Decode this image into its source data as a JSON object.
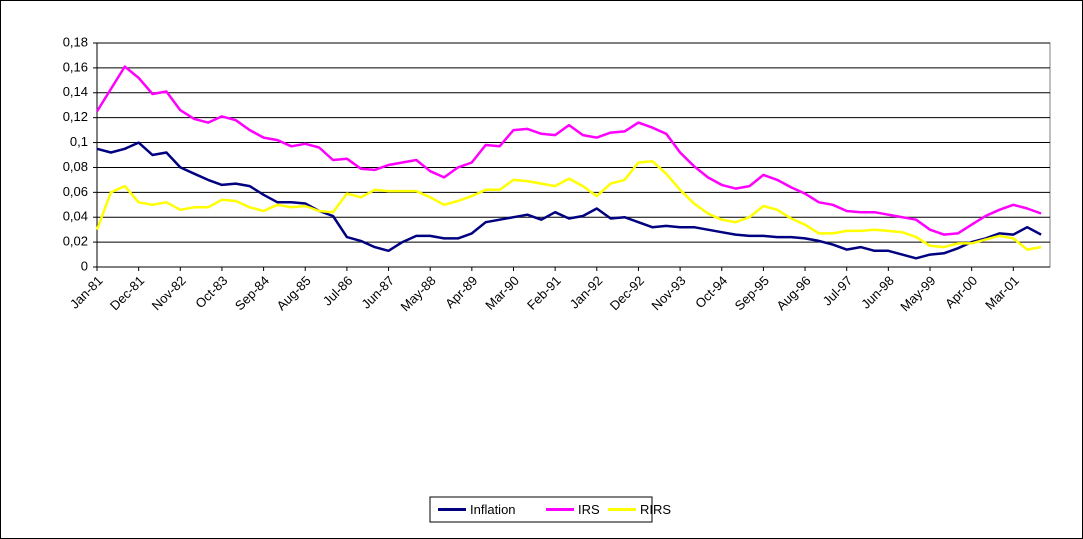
{
  "chart_data": {
    "type": "line",
    "categories": [
      "Jan-81",
      null,
      null,
      "Dec-81",
      null,
      null,
      "Nov-82",
      null,
      null,
      "Oct-83",
      null,
      null,
      "Sep-84",
      null,
      null,
      "Aug-85",
      null,
      null,
      "Jul-86",
      null,
      null,
      "Jun-87",
      null,
      null,
      "May-88",
      null,
      null,
      "Apr-89",
      null,
      null,
      "Mar-90",
      null,
      null,
      "Feb-91",
      null,
      null,
      "Jan-92",
      null,
      null,
      "Dec-92",
      null,
      null,
      "Nov-93",
      null,
      null,
      "Oct-94",
      null,
      null,
      "Sep-95",
      null,
      null,
      "Aug-96",
      null,
      null,
      "Jul-97",
      null,
      null,
      "Jun-98",
      null,
      null,
      "May-99",
      null,
      null,
      "Apr-00",
      null,
      null,
      "Mar-01",
      null,
      null
    ],
    "series": [
      {
        "name": "Inflation",
        "color": "#000080",
        "values": [
          0.095,
          0.092,
          0.095,
          0.1,
          0.09,
          0.092,
          0.08,
          0.075,
          0.07,
          0.066,
          0.067,
          0.065,
          0.058,
          0.052,
          0.052,
          0.051,
          0.045,
          0.041,
          0.024,
          0.021,
          0.016,
          0.013,
          0.02,
          0.025,
          0.025,
          0.023,
          0.023,
          0.027,
          0.036,
          0.038,
          0.04,
          0.042,
          0.038,
          0.044,
          0.039,
          0.041,
          0.047,
          0.039,
          0.04,
          0.036,
          0.032,
          0.033,
          0.032,
          0.032,
          0.03,
          0.028,
          0.026,
          0.025,
          0.025,
          0.024,
          0.024,
          0.023,
          0.021,
          0.018,
          0.014,
          0.016,
          0.013,
          0.013,
          0.01,
          0.007,
          0.01,
          0.011,
          0.015,
          0.02,
          0.023,
          0.027,
          0.026,
          0.032,
          0.026
        ]
      },
      {
        "name": "IRS",
        "color": "#ff00ff",
        "values": [
          0.125,
          0.143,
          0.161,
          0.152,
          0.139,
          0.141,
          0.126,
          0.119,
          0.116,
          0.121,
          0.118,
          0.11,
          0.104,
          0.102,
          0.097,
          0.099,
          0.096,
          0.086,
          0.087,
          0.079,
          0.078,
          0.082,
          0.084,
          0.086,
          0.077,
          0.072,
          0.08,
          0.084,
          0.098,
          0.097,
          0.11,
          0.111,
          0.107,
          0.106,
          0.114,
          0.106,
          0.104,
          0.108,
          0.109,
          0.116,
          0.112,
          0.107,
          0.092,
          0.081,
          0.072,
          0.066,
          0.063,
          0.065,
          0.074,
          0.07,
          0.064,
          0.059,
          0.052,
          0.05,
          0.045,
          0.044,
          0.044,
          0.042,
          0.04,
          0.038,
          0.03,
          0.026,
          0.027,
          0.034,
          0.041,
          0.046,
          0.05,
          0.047,
          0.043
        ]
      },
      {
        "name": "RIRS",
        "color": "#ffff00",
        "values": [
          0.03,
          0.06,
          0.065,
          0.052,
          0.05,
          0.052,
          0.046,
          0.048,
          0.048,
          0.054,
          0.053,
          0.048,
          0.045,
          0.05,
          0.048,
          0.049,
          0.045,
          0.044,
          0.059,
          0.056,
          0.062,
          0.061,
          0.061,
          0.061,
          0.056,
          0.05,
          0.053,
          0.057,
          0.062,
          0.062,
          0.07,
          0.069,
          0.067,
          0.065,
          0.071,
          0.065,
          0.057,
          0.067,
          0.07,
          0.084,
          0.085,
          0.075,
          0.062,
          0.051,
          0.043,
          0.038,
          0.036,
          0.04,
          0.049,
          0.046,
          0.039,
          0.034,
          0.027,
          0.027,
          0.029,
          0.029,
          0.03,
          0.029,
          0.028,
          0.024,
          0.017,
          0.016,
          0.019,
          0.019,
          0.022,
          0.025,
          0.023,
          0.014,
          0.016
        ]
      }
    ],
    "ylim": [
      0,
      0.18
    ],
    "yticks": [
      0,
      {
        "value": 0.02,
        "label": "0,02"
      },
      {
        "value": 0.04,
        "label": "0,04"
      },
      {
        "value": 0.06,
        "label": "0,06"
      },
      {
        "value": 0.08,
        "label": "0,08"
      },
      {
        "value": 0.1,
        "label": "0,1"
      },
      {
        "value": 0.12,
        "label": "0,12"
      },
      {
        "value": 0.14,
        "label": "0,14"
      },
      {
        "value": 0.16,
        "label": "0,16"
      },
      {
        "value": 0.18,
        "label": "0,18"
      }
    ],
    "grid": true,
    "legend": "bottom"
  }
}
